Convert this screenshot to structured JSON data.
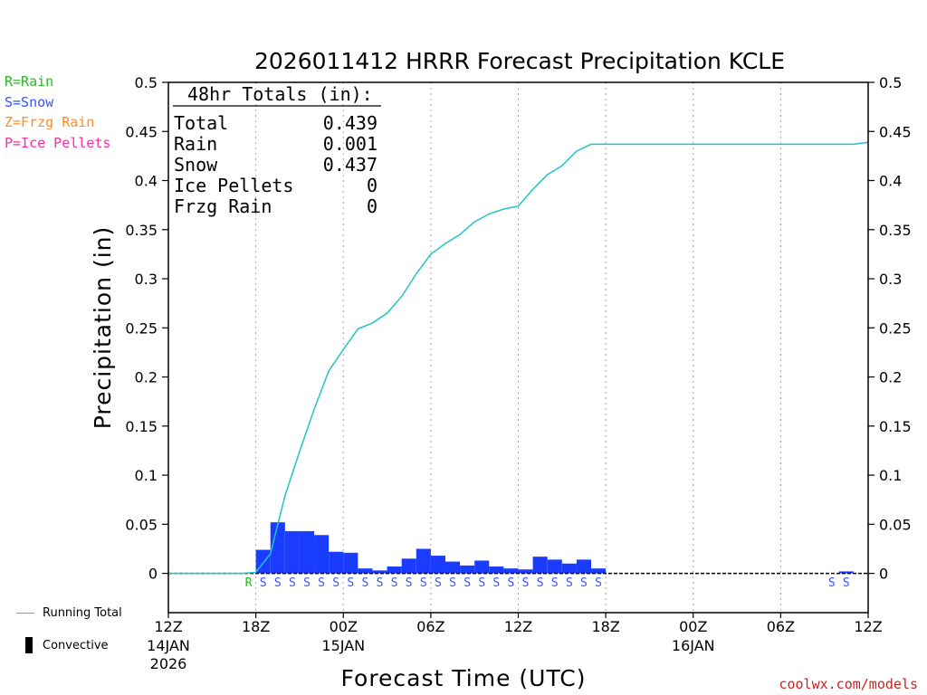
{
  "chart_data": {
    "type": "bar",
    "title": "2026011412 HRRR Forecast Precipitation KCLE",
    "xlabel": "Forecast Time (UTC)",
    "ylabel": "Precipitation (in)",
    "ylim": [
      -0.04,
      0.5
    ],
    "xlim": [
      0,
      48
    ],
    "yticks": [
      0,
      0.05,
      0.1,
      0.15,
      0.2,
      0.25,
      0.3,
      0.35,
      0.4,
      0.45,
      0.5
    ],
    "ytick_labels": [
      "0",
      "0.05",
      "0.1",
      "0.15",
      "0.2",
      "0.25",
      "0.3",
      "0.35",
      "0.4",
      "0.45",
      "0.5"
    ],
    "xticks": [
      {
        "hour": 0,
        "label": "12Z",
        "date": "14JAN",
        "year": "2026"
      },
      {
        "hour": 6,
        "label": "18Z"
      },
      {
        "hour": 12,
        "label": "00Z",
        "date": "15JAN"
      },
      {
        "hour": 18,
        "label": "06Z"
      },
      {
        "hour": 24,
        "label": "12Z"
      },
      {
        "hour": 30,
        "label": "18Z"
      },
      {
        "hour": 36,
        "label": "00Z",
        "date": "16JAN"
      },
      {
        "hour": 42,
        "label": "06Z"
      },
      {
        "hour": 48,
        "label": "12Z"
      }
    ],
    "grid_hours": [
      6,
      12,
      18,
      24,
      30,
      36,
      42
    ],
    "hourly_bars": {
      "name": "Snow",
      "color": "#1a3cff",
      "hours": [
        7,
        8,
        9,
        10,
        11,
        12,
        13,
        14,
        15,
        16,
        17,
        18,
        19,
        20,
        21,
        22,
        23,
        24,
        25,
        26,
        27,
        28,
        29,
        30,
        31,
        47
      ],
      "values": [
        0.024,
        0.052,
        0.043,
        0.043,
        0.039,
        0.022,
        0.021,
        0.005,
        0.003,
        0.007,
        0.015,
        0.025,
        0.018,
        0.012,
        0.008,
        0.013,
        0.007,
        0.005,
        0.004,
        0.017,
        0.014,
        0.01,
        0.014,
        0.005,
        0.0,
        0.002
      ]
    },
    "running_total": {
      "name": "Running Total",
      "color": "#22c4c4",
      "x": [
        0,
        5,
        6,
        7,
        8,
        9,
        10,
        11,
        12,
        13,
        14,
        15,
        16,
        17,
        18,
        19,
        20,
        21,
        22,
        23,
        24,
        25,
        26,
        27,
        28,
        29,
        30,
        31,
        47,
        48
      ],
      "y": [
        0,
        0,
        0.001,
        0.02,
        0.079,
        0.124,
        0.167,
        0.206,
        0.228,
        0.249,
        0.255,
        0.265,
        0.282,
        0.305,
        0.325,
        0.336,
        0.345,
        0.358,
        0.366,
        0.371,
        0.374,
        0.391,
        0.406,
        0.415,
        0.43,
        0.437,
        0.437,
        0.437,
        0.437,
        0.439
      ]
    },
    "ptype_markers": {
      "hours": [
        6,
        7,
        8,
        9,
        10,
        11,
        12,
        13,
        14,
        15,
        16,
        17,
        18,
        19,
        20,
        21,
        22,
        23,
        24,
        25,
        26,
        27,
        28,
        29,
        30,
        46,
        47
      ],
      "codes": [
        "R",
        "S",
        "S",
        "S",
        "S",
        "S",
        "S",
        "S",
        "S",
        "S",
        "S",
        "S",
        "S",
        "S",
        "S",
        "S",
        "S",
        "S",
        "S",
        "S",
        "S",
        "S",
        "S",
        "S",
        "S",
        "S",
        "S"
      ]
    },
    "ptype_colors": {
      "R": "#22bb22",
      "S": "#3355ff",
      "Z": "#ff8c2a",
      "P": "#ff2aa0"
    },
    "legend_ptypes": [
      {
        "text": "R=Rain",
        "color": "#22bb22"
      },
      {
        "text": "S=Snow",
        "color": "#3355ff"
      },
      {
        "text": "Z=Frzg Rain",
        "color": "#ff8c2a"
      },
      {
        "text": "P=Ice Pellets",
        "color": "#ff2aa0"
      }
    ],
    "legend_bottom": {
      "line_label": "Running Total",
      "bar_label": "Convective"
    },
    "totals_box": {
      "title": "48hr Totals (in):",
      "rows": [
        {
          "label": "Total",
          "value": "0.439"
        },
        {
          "label": "Rain",
          "value": "0.001"
        },
        {
          "label": "Snow",
          "value": "0.437"
        },
        {
          "label": "Ice Pellets",
          "value": "0"
        },
        {
          "label": "Frzg Rain",
          "value": "0"
        }
      ]
    },
    "credit": "coolwx.com/models"
  }
}
